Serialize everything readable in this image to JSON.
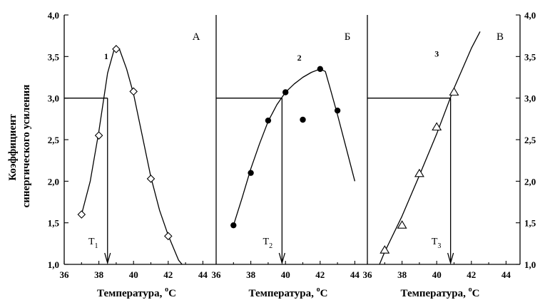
{
  "chart_data": {
    "type": "scatter",
    "ylabel": "Коэффициент синергического усиления",
    "ylabel_lines": [
      "Коэффициент",
      "синергического усиления"
    ],
    "ylim": [
      1.0,
      4.0
    ],
    "y_ticks": [
      "1,0",
      "1,5",
      "2,0",
      "2,5",
      "3,0",
      "3,5",
      "4,0"
    ],
    "threshold": 3.0,
    "panels": [
      {
        "label": "А",
        "xlabel": "Температура, °С",
        "xlabel_text": "Температура, ",
        "xlabel_unit_sup": "o",
        "xlabel_unit": "С",
        "xlim": [
          36,
          45
        ],
        "x_ticks": [
          "36",
          "38",
          "40",
          "42",
          "44"
        ],
        "curve_label": "1",
        "marker": "diamond-open",
        "points": [
          [
            37.0,
            1.6
          ],
          [
            38.0,
            2.55
          ],
          [
            39.0,
            3.59
          ],
          [
            40.0,
            3.08
          ],
          [
            41.0,
            2.03
          ],
          [
            42.0,
            1.34
          ]
        ],
        "curve": [
          [
            37.0,
            1.6
          ],
          [
            37.5,
            2.0
          ],
          [
            38.0,
            2.6
          ],
          [
            38.5,
            3.3
          ],
          [
            38.9,
            3.6
          ],
          [
            39.2,
            3.58
          ],
          [
            39.6,
            3.35
          ],
          [
            40.0,
            3.05
          ],
          [
            40.5,
            2.55
          ],
          [
            41.0,
            2.05
          ],
          [
            41.5,
            1.65
          ],
          [
            42.0,
            1.35
          ],
          [
            42.6,
            1.05
          ],
          [
            42.8,
            1.0
          ]
        ],
        "marker_value": "T",
        "marker_sub": "1",
        "marker_x": 38.5
      },
      {
        "label": "Б",
        "xlabel": "Температура, °С",
        "xlabel_text": "Температура, ",
        "xlabel_unit_sup": "o",
        "xlabel_unit": "С",
        "xlim": [
          36,
          45
        ],
        "x_ticks": [
          "36",
          "38",
          "40",
          "42",
          "44"
        ],
        "curve_label": "2",
        "marker": "circle-filled",
        "points": [
          [
            37.0,
            1.47
          ],
          [
            38.0,
            2.1
          ],
          [
            39.0,
            2.73
          ],
          [
            40.0,
            3.07
          ],
          [
            41.0,
            2.74
          ],
          [
            42.0,
            3.35
          ],
          [
            43.0,
            2.85
          ]
        ],
        "curve": [
          [
            37.0,
            1.47
          ],
          [
            37.5,
            1.8
          ],
          [
            38.0,
            2.15
          ],
          [
            38.5,
            2.45
          ],
          [
            39.0,
            2.72
          ],
          [
            39.5,
            2.92
          ],
          [
            40.0,
            3.07
          ],
          [
            40.5,
            3.17
          ],
          [
            41.0,
            3.25
          ],
          [
            41.5,
            3.31
          ],
          [
            42.0,
            3.35
          ],
          [
            42.3,
            3.32
          ],
          [
            42.6,
            3.1
          ],
          [
            43.0,
            2.8
          ],
          [
            43.5,
            2.4
          ],
          [
            44.0,
            2.0
          ]
        ],
        "marker_value": "T",
        "marker_sub": "2",
        "marker_x": 39.8
      },
      {
        "label": "В",
        "xlabel": "Температура, °С",
        "xlabel_text": "Температура, ",
        "xlabel_unit_sup": "o",
        "xlabel_unit": "С",
        "xlim": [
          36,
          45
        ],
        "x_ticks": [
          "36",
          "38",
          "40",
          "42",
          "44"
        ],
        "curve_label": "3",
        "marker": "triangle-open",
        "points": [
          [
            37.0,
            1.17
          ],
          [
            38.0,
            1.47
          ],
          [
            39.0,
            2.09
          ],
          [
            40.0,
            2.65
          ],
          [
            41.0,
            3.07
          ]
        ],
        "curve": [
          [
            36.7,
            1.0
          ],
          [
            37.0,
            1.15
          ],
          [
            38.0,
            1.58
          ],
          [
            39.0,
            2.07
          ],
          [
            40.0,
            2.57
          ],
          [
            41.0,
            3.12
          ],
          [
            42.0,
            3.6
          ],
          [
            42.5,
            3.8
          ]
        ],
        "marker_value": "T",
        "marker_sub": "3",
        "marker_x": 40.8
      }
    ]
  }
}
